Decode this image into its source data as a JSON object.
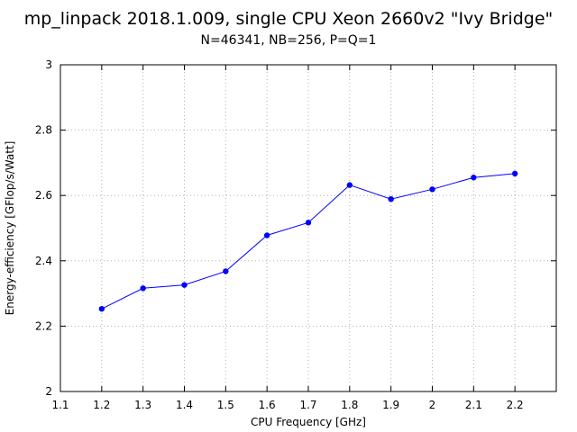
{
  "chart_data": {
    "type": "line",
    "title": "mp_linpack 2018.1.009, single CPU Xeon 2660v2 \"Ivy Bridge\"",
    "subtitle": "N=46341, NB=256, P=Q=1",
    "xlabel": "CPU Frequency [GHz]",
    "ylabel": "Energy-efficiency [GFlop/s/Watt]",
    "xlim": [
      1.1,
      2.3
    ],
    "ylim": [
      2,
      3
    ],
    "xticks": [
      "1.1",
      "1.2",
      "1.3",
      "1.4",
      "1.5",
      "1.6",
      "1.7",
      "1.8",
      "1.9",
      "2",
      "2.1",
      "2.2"
    ],
    "yticks": [
      "2",
      "2.2",
      "2.4",
      "2.6",
      "2.8",
      "3"
    ],
    "grid": true,
    "series": [
      {
        "color": "#0000ff",
        "x": [
          1.2,
          1.3,
          1.4,
          1.5,
          1.6,
          1.7,
          1.8,
          1.9,
          2.0,
          2.1,
          2.2
        ],
        "y": [
          2.253,
          2.316,
          2.326,
          2.368,
          2.478,
          2.517,
          2.632,
          2.589,
          2.619,
          2.655,
          2.667
        ]
      }
    ]
  }
}
